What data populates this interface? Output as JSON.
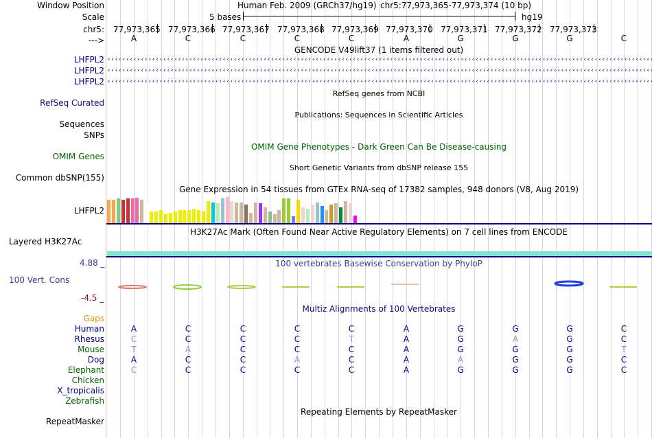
{
  "header": {
    "window_position_label": "Window Position",
    "assembly_title": "Human Feb. 2009 (GRCh37/hg19)",
    "position": "chr5:77,973,365-77,973,374 (10 bp)",
    "scale_label": "Scale",
    "scale_value": "5 bases",
    "scale_db": "hg19",
    "chrom_label": "chr5:",
    "strand_label": "--->"
  },
  "coordinates": [
    "77,973,365",
    "77,973,366",
    "77,973,367",
    "77,973,368",
    "77,973,369",
    "77,973,370",
    "77,973,371",
    "77,973,372",
    "77,973,373"
  ],
  "bases": [
    "A",
    "C",
    "C",
    "C",
    "C",
    "A",
    "G",
    "G",
    "G",
    "C"
  ],
  "gencode": {
    "title": "GENCODE V49lift37 (1 items filtered out)",
    "items": [
      "LHFPL2",
      "LHFPL2",
      "LHFPL2"
    ]
  },
  "refseq": {
    "title": "RefSeq genes from NCBI",
    "label": "RefSeq Curated"
  },
  "publications": {
    "title": "Publications: Sequences in Scientific Articles",
    "label_sequences": "Sequences",
    "label_snps": "SNPs"
  },
  "omim": {
    "title": "OMIM Gene Phenotypes - Dark Green Can Be Disease-causing",
    "label": "OMIM Genes"
  },
  "dbsnp": {
    "title": "Short Genetic Variants from dbSNP release 155",
    "label": "Common dbSNP(155)"
  },
  "gtex": {
    "title": "Gene Expression in 54 tissues from GTEx RNA-seq of 17382 samples, 948 donors (V8, Aug 2019)",
    "label": "LHFPL2",
    "levels": [
      0.9,
      0.9,
      0.95,
      0.9,
      0.95,
      0.95,
      0.97,
      0.9,
      0.75,
      0.45,
      0.45,
      0.5,
      0.35,
      0.4,
      0.45,
      0.5,
      0.5,
      0.5,
      0.55,
      0.5,
      0.45,
      0.85,
      0.8,
      0.75,
      0.95,
      1.0,
      0.85,
      0.8,
      0.8,
      0.7,
      0.4,
      0.8,
      0.75,
      0.6,
      0.45,
      0.35,
      0.5,
      0.95,
      0.95,
      0.25,
      0.9,
      0.6,
      0.55,
      0.7,
      0.8,
      0.65,
      0.5,
      0.7,
      0.75,
      0.6,
      0.85,
      0.75,
      0.3,
      0.25
    ],
    "colors": [
      "#ffa54f",
      "#ffa54f",
      "#7ccd7c",
      "#cd3333",
      "#cd3333",
      "#ee6aa7",
      "#ee6aa7",
      "#cdb79e",
      "#ffffff",
      "#eeee00",
      "#eeee00",
      "#eeee00",
      "#eeee00",
      "#eeee00",
      "#eeee00",
      "#eeee00",
      "#eeee00",
      "#eeee00",
      "#eeee00",
      "#eeee00",
      "#eeee00",
      "#eeee00",
      "#00ced1",
      "#b4eeb4",
      "#9ac0cd",
      "#ffb6c1",
      "#eed5d2",
      "#cdb79e",
      "#cdb79e",
      "#8b7355",
      "#cdb79e",
      "#cdb79e",
      "#9b30ff",
      "#cdb79e",
      "#8fbc8f",
      "#cdb79e",
      "#cdb79e",
      "#9acd32",
      "#9acd32",
      "#7777ff",
      "#ffd700",
      "#eed5d2",
      "#b4eeb4",
      "#eed5d2",
      "#9ac0cd",
      "#1e90ff",
      "#cdb79e",
      "#cd9b1d",
      "#cdb79e",
      "#008b45",
      "#cdb79e",
      "#eed5d2",
      "#ff00ff",
      "#ffffff"
    ]
  },
  "h3k27ac": {
    "title": "H3K27Ac Mark (Often Found Near Active Regulatory Elements) on 7 cell lines from ENCODE",
    "label": "Layered H3K27Ac",
    "color": "#7fe5d6"
  },
  "phylop": {
    "title": "100 vertebrates Basewise Conservation by PhyloP",
    "label": "100 Vert. Cons",
    "ymax": "4.88 _",
    "ymin": "-4.5 _"
  },
  "multiz": {
    "title": "Multiz Alignments of 100 Vertebrates",
    "gaps_label": "Gaps",
    "species": [
      {
        "name": "Human",
        "bases": [
          "A",
          "C",
          "C",
          "C",
          "C",
          "A",
          "G",
          "G",
          "G",
          "C"
        ],
        "faded": [
          false,
          false,
          false,
          false,
          false,
          false,
          false,
          false,
          false,
          false
        ]
      },
      {
        "name": "Rhesus",
        "bases": [
          "C",
          "C",
          "C",
          "C",
          "T",
          "A",
          "G",
          "A",
          "G",
          "C"
        ],
        "faded": [
          true,
          false,
          false,
          false,
          true,
          false,
          false,
          true,
          false,
          false
        ]
      },
      {
        "name": "Mouse",
        "bases": [
          "T",
          "A",
          "C",
          "C",
          "C",
          "A",
          "G",
          "G",
          "G",
          "T"
        ],
        "faded": [
          true,
          true,
          false,
          false,
          false,
          false,
          false,
          false,
          false,
          true
        ]
      },
      {
        "name": "Dog",
        "bases": [
          "A",
          "C",
          "C",
          "A",
          "C",
          "A",
          "A",
          "G",
          "G",
          "C"
        ],
        "faded": [
          false,
          false,
          false,
          true,
          false,
          false,
          true,
          false,
          false,
          false
        ]
      },
      {
        "name": "Elephant",
        "bases": [
          "C",
          "C",
          "C",
          "C",
          "C",
          "A",
          "G",
          "G",
          "G",
          "C"
        ],
        "faded": [
          true,
          false,
          false,
          false,
          false,
          false,
          false,
          false,
          false,
          false
        ]
      },
      {
        "name": "Chicken",
        "bases": [],
        "faded": []
      },
      {
        "name": "X_tropicalis",
        "bases": [],
        "faded": []
      },
      {
        "name": "Zebrafish",
        "bases": [],
        "faded": []
      }
    ]
  },
  "repeatmasker": {
    "title": "Repeating Elements by RepeatMasker",
    "label": "RepeatMasker"
  }
}
